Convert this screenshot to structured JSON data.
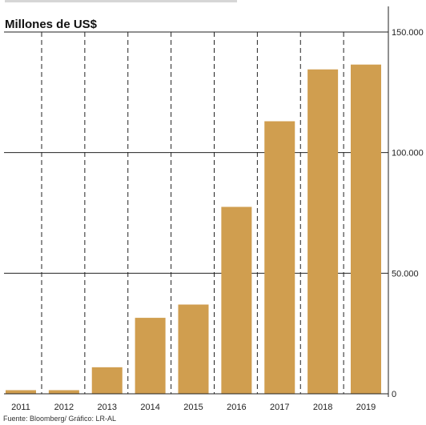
{
  "chart_data": {
    "type": "bar",
    "title": "Millones de US$",
    "categories": [
      "2011",
      "2012",
      "2013",
      "2014",
      "2015",
      "2016",
      "2017",
      "2018",
      "2019"
    ],
    "values": [
      1500,
      1500,
      11000,
      31500,
      37000,
      77500,
      113000,
      134500,
      136500
    ],
    "ylim": [
      0,
      150000
    ],
    "yticks": [
      0,
      50000,
      100000,
      150000
    ],
    "ytick_labels": [
      "0",
      "50.000",
      "100.000",
      "150.000"
    ],
    "y_axis_side": "right",
    "grid": "horizontal solid at y ticks; vertical dashed between categories",
    "bar_color": "#d09e4f",
    "source": "Fuente: Bloomberg/ Gráfico: LR-AL"
  }
}
